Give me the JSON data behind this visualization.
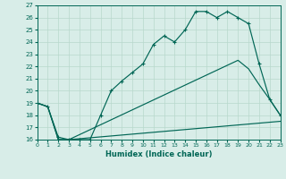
{
  "xlabel": "Humidex (Indice chaleur)",
  "bg_color": "#d8ede8",
  "grid_color": "#b8d8cc",
  "line_color": "#006655",
  "xlim": [
    0,
    23
  ],
  "ylim": [
    16,
    27
  ],
  "yticks": [
    16,
    17,
    18,
    19,
    20,
    21,
    22,
    23,
    24,
    25,
    26,
    27
  ],
  "xticks": [
    0,
    1,
    2,
    3,
    4,
    5,
    6,
    7,
    8,
    9,
    10,
    11,
    12,
    13,
    14,
    15,
    16,
    17,
    18,
    19,
    20,
    21,
    22,
    23
  ],
  "curve1_x": [
    0,
    1,
    2,
    3,
    4,
    5,
    6,
    7,
    8,
    9,
    10,
    11,
    12,
    13,
    14,
    15,
    16,
    17,
    18,
    19,
    20,
    21,
    22,
    23
  ],
  "curve1_y": [
    19,
    18.7,
    16.2,
    16.0,
    16.0,
    16.0,
    18.0,
    20.0,
    20.8,
    21.5,
    22.2,
    23.8,
    24.5,
    24.0,
    25.0,
    26.5,
    26.5,
    26.0,
    26.5,
    26.0,
    25.5,
    22.2,
    19.3,
    18.0
  ],
  "curve2_x": [
    0,
    1,
    2,
    3,
    19,
    20,
    21,
    22,
    23
  ],
  "curve2_y": [
    19,
    18.7,
    16.0,
    16.0,
    22.5,
    21.8,
    20.5,
    19.3,
    18.0
  ],
  "curve3_x": [
    0,
    1,
    2,
    3,
    23
  ],
  "curve3_y": [
    19,
    18.7,
    16.0,
    16.0,
    17.5
  ]
}
